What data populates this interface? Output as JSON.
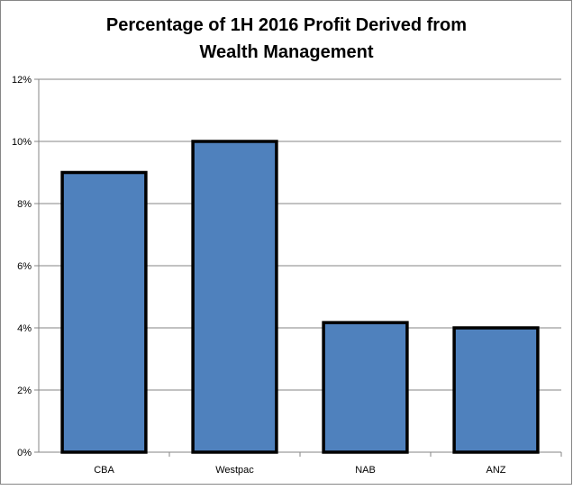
{
  "chart_data": {
    "type": "bar",
    "title_lines": [
      "Percentage of 1H 2016 Profit Derived from",
      "Wealth Management"
    ],
    "categories": [
      "CBA",
      "Westpac",
      "NAB",
      "ANZ"
    ],
    "values": [
      9.0,
      10.0,
      4.17,
      4.0
    ],
    "ylim": [
      0,
      12
    ],
    "yticks": [
      0,
      2,
      4,
      6,
      8,
      10,
      12
    ],
    "ytick_labels": [
      "0%",
      "2%",
      "4%",
      "6%",
      "8%",
      "10%",
      "12%"
    ],
    "xlabel": "",
    "ylabel": "",
    "grid": true,
    "colors": {
      "bar": "#4F81BD",
      "bar_border": "#000000",
      "grid": "#868686"
    }
  }
}
